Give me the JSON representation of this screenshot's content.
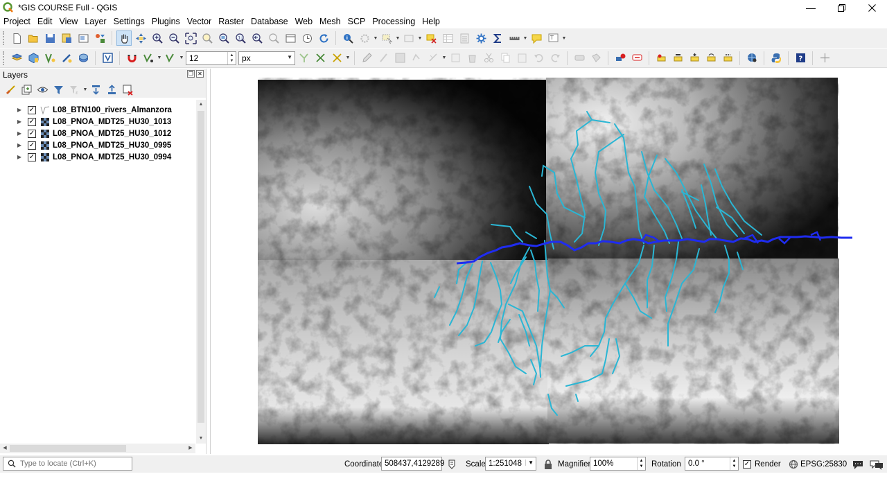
{
  "window": {
    "title": "*GIS COURSE Full - QGIS",
    "minimize_icon": "minimize-icon",
    "restore_icon": "restore-icon",
    "close_icon": "close-icon"
  },
  "menu": [
    "Project",
    "Edit",
    "View",
    "Layer",
    "Settings",
    "Plugins",
    "Vector",
    "Raster",
    "Database",
    "Web",
    "Mesh",
    "SCP",
    "Processing",
    "Help"
  ],
  "digitizing": {
    "snap_tolerance": "12",
    "snap_units": "px"
  },
  "layers_panel": {
    "title": "Layers",
    "layers": [
      {
        "name": "L08_BTN100_rivers_Almanzora",
        "type": "vector-line",
        "checked": "✓"
      },
      {
        "name": "L08_PNOA_MDT25_HU30_1013",
        "type": "raster",
        "checked": "✓"
      },
      {
        "name": "L08_PNOA_MDT25_HU30_1012",
        "type": "raster",
        "checked": "✓"
      },
      {
        "name": "L08_PNOA_MDT25_HU30_0995",
        "type": "raster",
        "checked": "✓"
      },
      {
        "name": "L08_PNOA_MDT25_HU30_0994",
        "type": "raster",
        "checked": "✓"
      }
    ]
  },
  "map": {
    "river_tributary_color": "#2ab6d4",
    "river_main_color": "#1f2cf0",
    "dem_low_color": "#050505",
    "dem_high_color": "#f4f4f4"
  },
  "status": {
    "locator_placeholder": "Type to locate (Ctrl+K)",
    "coordinate_label": "Coordinate",
    "coordinate_value": "508437,4129289",
    "scale_label": "Scale",
    "scale_value": "1:251048",
    "magnifier_label": "Magnifier",
    "magnifier_value": "100%",
    "rotation_label": "Rotation",
    "rotation_value": "0.0 °",
    "render_label": "Render",
    "render_checked": "✓",
    "crs": "EPSG:25830"
  }
}
